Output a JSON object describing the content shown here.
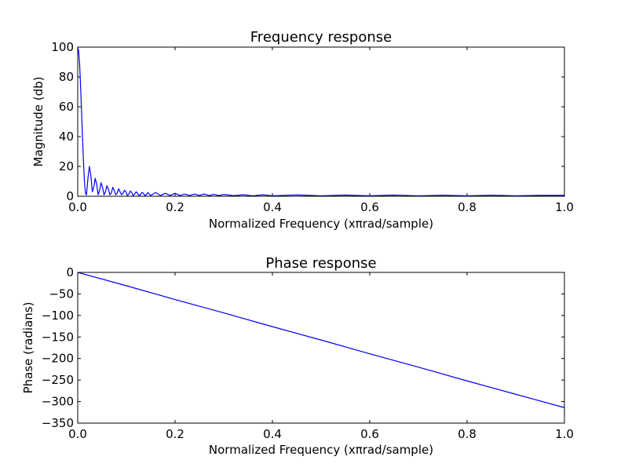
{
  "colors": {
    "line": "#0000ff",
    "axes": "#000000",
    "background": "#ffffff"
  },
  "chart_data": [
    {
      "type": "line",
      "title": "Frequency response",
      "xlabel": "Normalized Frequency (xπrad/sample)",
      "ylabel": "Magnitude (db)",
      "xlim": [
        0.0,
        1.0
      ],
      "ylim": [
        0,
        100
      ],
      "xticks": [
        0.0,
        0.2,
        0.4,
        0.6,
        0.8,
        1.0
      ],
      "xtick_labels": [
        "0.0",
        "0.2",
        "0.4",
        "0.6",
        "0.8",
        "1.0"
      ],
      "yticks": [
        0,
        20,
        40,
        60,
        80,
        100
      ],
      "ytick_labels": [
        "0",
        "20",
        "40",
        "60",
        "80",
        "100"
      ],
      "grid": false,
      "series": [
        {
          "x": [
            0,
            0.002,
            0.004,
            0.006,
            0.008,
            0.01,
            0.012,
            0.014,
            0.016,
            0.018,
            0.021,
            0.024,
            0.027,
            0.03,
            0.033,
            0.036,
            0.039,
            0.042,
            0.045,
            0.048,
            0.051,
            0.054,
            0.057,
            0.06,
            0.063,
            0.066,
            0.069,
            0.072,
            0.075,
            0.078,
            0.081,
            0.084,
            0.087,
            0.09,
            0.093,
            0.096,
            0.099,
            0.102,
            0.105,
            0.108,
            0.111,
            0.114,
            0.117,
            0.12,
            0.123,
            0.126,
            0.129,
            0.132,
            0.135,
            0.138,
            0.141,
            0.144,
            0.147,
            0.15,
            0.16,
            0.17,
            0.18,
            0.19,
            0.2,
            0.21,
            0.22,
            0.23,
            0.24,
            0.25,
            0.26,
            0.27,
            0.28,
            0.29,
            0.3,
            0.32,
            0.34,
            0.36,
            0.38,
            0.4,
            0.45,
            0.5,
            0.55,
            0.6,
            0.65,
            0.7,
            0.75,
            0.8,
            0.85,
            0.9,
            0.95,
            1.0
          ],
          "y": [
            100,
            97,
            88,
            73,
            56,
            38,
            22,
            9,
            2,
            1,
            12,
            20,
            14,
            3,
            6,
            12,
            8,
            1,
            4,
            9,
            6,
            1,
            3,
            7,
            5,
            1,
            2,
            6,
            4,
            1,
            2,
            5,
            3,
            1,
            2,
            4,
            3,
            0.5,
            1.5,
            3.5,
            2.5,
            0.5,
            1.5,
            3,
            2,
            0.5,
            1,
            2.5,
            2,
            0.5,
            1,
            2.5,
            1.5,
            0.5,
            2.5,
            0.5,
            2,
            0.5,
            2,
            0.5,
            1.5,
            0.5,
            1.5,
            0.5,
            1.5,
            0.4,
            1.3,
            0.4,
            1.2,
            0.4,
            1,
            0.3,
            1,
            0.3,
            0.9,
            0.3,
            0.8,
            0.3,
            0.8,
            0.3,
            0.7,
            0.3,
            0.7,
            0.3,
            0.6,
            0.6
          ]
        }
      ]
    },
    {
      "type": "line",
      "title": "Phase response",
      "xlabel": "Normalized Frequency (xπrad/sample)",
      "ylabel": "Phase (radians)",
      "xlim": [
        0.0,
        1.0
      ],
      "ylim": [
        -350,
        0
      ],
      "xticks": [
        0.0,
        0.2,
        0.4,
        0.6,
        0.8,
        1.0
      ],
      "xtick_labels": [
        "0.0",
        "0.2",
        "0.4",
        "0.6",
        "0.8",
        "1.0"
      ],
      "yticks": [
        0,
        -50,
        -100,
        -150,
        -200,
        -250,
        -300,
        -350
      ],
      "ytick_labels": [
        "0",
        "−50",
        "−100",
        "−150",
        "−200",
        "−250",
        "−300",
        "−350"
      ],
      "grid": false,
      "series": [
        {
          "x": [
            0.0,
            0.1,
            0.2,
            0.3,
            0.4,
            0.5,
            0.6,
            0.7,
            0.8,
            0.9,
            1.0
          ],
          "y": [
            0,
            -31,
            -63,
            -94,
            -126,
            -157,
            -189,
            -220,
            -252,
            -283,
            -314
          ]
        }
      ]
    }
  ]
}
